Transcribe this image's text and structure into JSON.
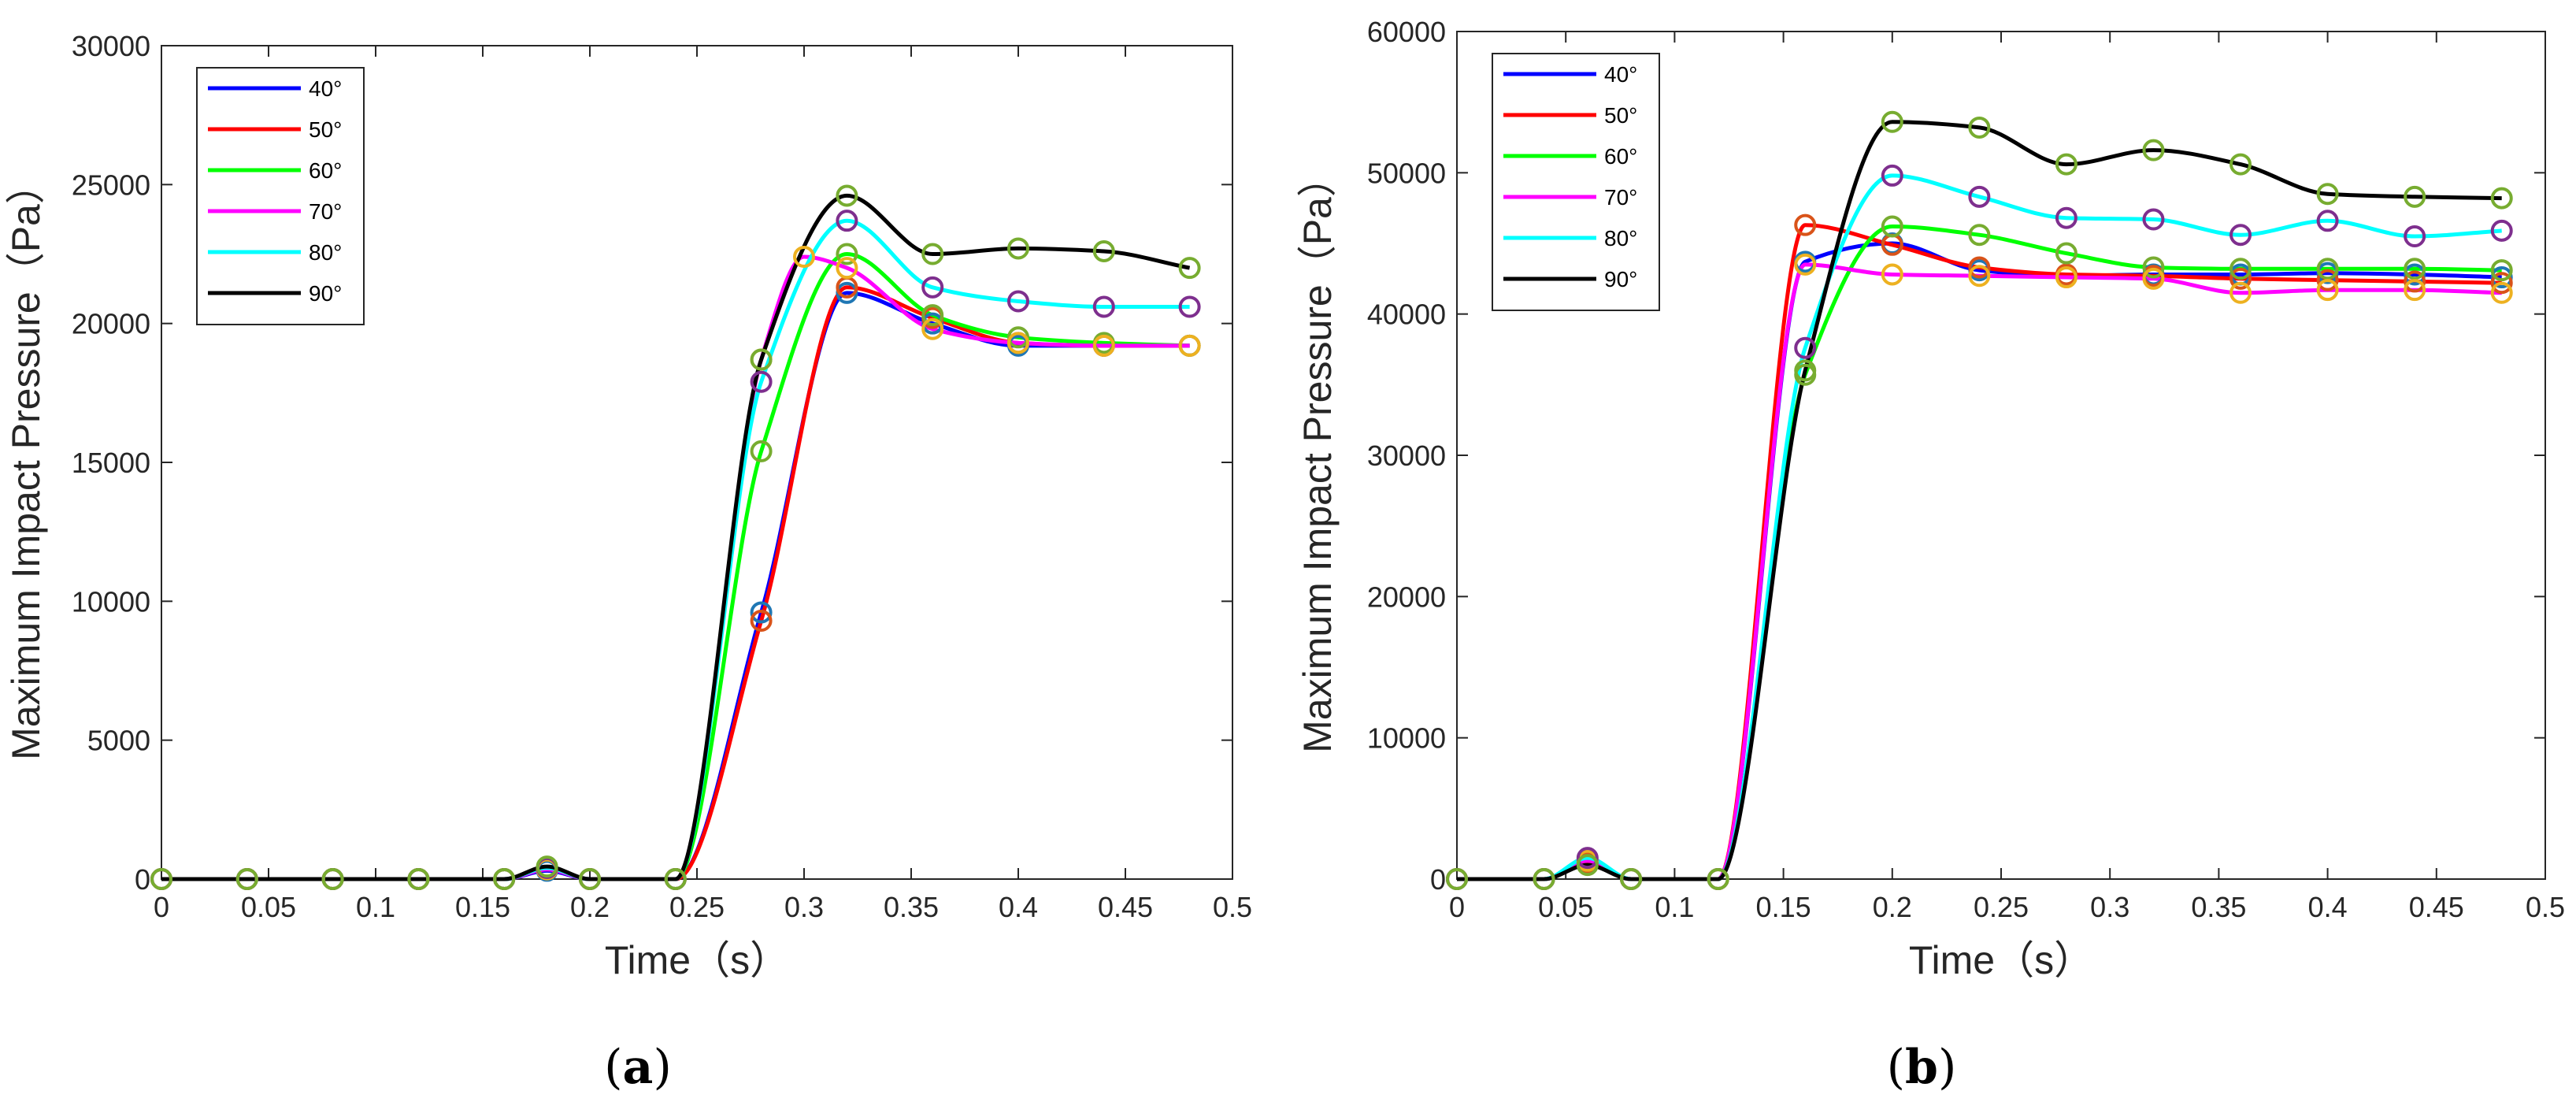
{
  "chart_data": [
    {
      "type": "line",
      "caption_open": "(",
      "caption_letter": "a",
      "caption_close": ")",
      "xlabel": "Time（s）",
      "ylabel": "Maximum Impact Pressure（Pa）",
      "xlim": [
        0,
        0.5
      ],
      "ylim": [
        0,
        30000
      ],
      "xticks": [
        0,
        0.05,
        0.1,
        0.15,
        0.2,
        0.25,
        0.3,
        0.35,
        0.4,
        0.45,
        0.5
      ],
      "xtick_labels": [
        "0",
        "0.05",
        "0.1",
        "0.15",
        "0.2",
        "0.25",
        "0.3",
        "0.35",
        "0.4",
        "0.45",
        "0.5"
      ],
      "yticks": [
        0,
        5000,
        10000,
        15000,
        20000,
        25000,
        30000
      ],
      "ytick_labels": [
        "0",
        "5000",
        "10000",
        "15000",
        "20000",
        "25000",
        "30000"
      ],
      "legend_location": "top-left",
      "series": [
        {
          "name": "40°",
          "color": "#0000ff",
          "marker_color": "#1f77b4",
          "x": [
            0,
            0.04,
            0.08,
            0.12,
            0.16,
            0.18,
            0.2,
            0.24,
            0.28,
            0.32,
            0.36,
            0.4,
            0.44,
            0.48
          ],
          "y": [
            0,
            0,
            0,
            0,
            0,
            300,
            0,
            0,
            9600,
            21100,
            20000,
            19200,
            19200,
            19200
          ]
        },
        {
          "name": "50°",
          "color": "#ff0000",
          "marker_color": "#d95319",
          "x": [
            0,
            0.04,
            0.08,
            0.12,
            0.16,
            0.18,
            0.2,
            0.24,
            0.28,
            0.32,
            0.36,
            0.4,
            0.44,
            0.48
          ],
          "y": [
            0,
            0,
            0,
            0,
            0,
            350,
            0,
            0,
            9300,
            21300,
            20200,
            19300,
            19200,
            19200
          ]
        },
        {
          "name": "60°",
          "color": "#00ff00",
          "marker_color": "#77ac30",
          "x": [
            0,
            0.04,
            0.08,
            0.12,
            0.16,
            0.18,
            0.2,
            0.24,
            0.28,
            0.32,
            0.36,
            0.4,
            0.44,
            0.48
          ],
          "y": [
            0,
            0,
            0,
            0,
            0,
            400,
            0,
            0,
            15400,
            22500,
            20300,
            19500,
            19300,
            19200
          ]
        },
        {
          "name": "70°",
          "color": "#ff00ff",
          "marker_color": "#edb120",
          "x": [
            0,
            0.04,
            0.08,
            0.12,
            0.16,
            0.18,
            0.2,
            0.24,
            0.28,
            0.3,
            0.32,
            0.36,
            0.4,
            0.44,
            0.48
          ],
          "y": [
            0,
            0,
            0,
            0,
            0,
            350,
            0,
            0,
            18700,
            22400,
            22000,
            19800,
            19300,
            19200,
            19200
          ]
        },
        {
          "name": "80°",
          "color": "#00ffff",
          "marker_color": "#7e2f8e",
          "x": [
            0,
            0.04,
            0.08,
            0.12,
            0.16,
            0.18,
            0.2,
            0.24,
            0.28,
            0.32,
            0.36,
            0.4,
            0.44,
            0.48
          ],
          "y": [
            0,
            0,
            0,
            0,
            0,
            400,
            0,
            0,
            17900,
            23700,
            21300,
            20800,
            20600,
            20600
          ]
        },
        {
          "name": "90°",
          "color": "#000000",
          "marker_color": "#77ac30",
          "x": [
            0,
            0.04,
            0.08,
            0.12,
            0.16,
            0.18,
            0.2,
            0.24,
            0.28,
            0.32,
            0.36,
            0.4,
            0.44,
            0.48
          ],
          "y": [
            0,
            0,
            0,
            0,
            0,
            450,
            0,
            0,
            18700,
            24600,
            22500,
            22700,
            22600,
            22000
          ]
        }
      ]
    },
    {
      "type": "line",
      "caption_open": "(",
      "caption_letter": "b",
      "caption_close": ")",
      "xlabel": "Time（s）",
      "ylabel": "Maximum Impact Pressure（Pa）",
      "xlim": [
        0,
        0.5
      ],
      "ylim": [
        0,
        60000
      ],
      "xticks": [
        0,
        0.05,
        0.1,
        0.15,
        0.2,
        0.25,
        0.3,
        0.35,
        0.4,
        0.45,
        0.5
      ],
      "xtick_labels": [
        "0",
        "0.05",
        "0.1",
        "0.15",
        "0.2",
        "0.25",
        "0.3",
        "0.35",
        "0.4",
        "0.45",
        "0.5"
      ],
      "yticks": [
        0,
        10000,
        20000,
        30000,
        40000,
        50000,
        60000
      ],
      "ytick_labels": [
        "0",
        "10000",
        "20000",
        "30000",
        "40000",
        "50000",
        "60000"
      ],
      "legend_location": "top-left",
      "series": [
        {
          "name": "40°",
          "color": "#0000ff",
          "marker_color": "#1f77b4",
          "x": [
            0,
            0.04,
            0.06,
            0.08,
            0.12,
            0.16,
            0.2,
            0.24,
            0.28,
            0.32,
            0.36,
            0.4,
            0.44,
            0.48
          ],
          "y": [
            0,
            0,
            1100,
            0,
            0,
            43700,
            45000,
            43100,
            42700,
            42800,
            42800,
            42900,
            42800,
            42600
          ]
        },
        {
          "name": "50°",
          "color": "#ff0000",
          "marker_color": "#d95319",
          "x": [
            0,
            0.04,
            0.06,
            0.08,
            0.12,
            0.16,
            0.2,
            0.24,
            0.28,
            0.32,
            0.36,
            0.4,
            0.44,
            0.48
          ],
          "y": [
            0,
            0,
            1200,
            0,
            0,
            46300,
            44900,
            43300,
            42800,
            42700,
            42500,
            42400,
            42300,
            42200
          ]
        },
        {
          "name": "60°",
          "color": "#00ff00",
          "marker_color": "#77ac30",
          "x": [
            0,
            0.04,
            0.06,
            0.08,
            0.12,
            0.16,
            0.2,
            0.24,
            0.28,
            0.32,
            0.36,
            0.4,
            0.44,
            0.48
          ],
          "y": [
            0,
            0,
            1400,
            0,
            0,
            35700,
            46200,
            45600,
            44300,
            43300,
            43200,
            43200,
            43200,
            43100
          ]
        },
        {
          "name": "70°",
          "color": "#ff00ff",
          "marker_color": "#edb120",
          "x": [
            0,
            0.04,
            0.06,
            0.08,
            0.12,
            0.16,
            0.2,
            0.24,
            0.28,
            0.32,
            0.36,
            0.4,
            0.44,
            0.48
          ],
          "y": [
            0,
            0,
            1300,
            0,
            0,
            43500,
            42800,
            42700,
            42600,
            42500,
            41500,
            41700,
            41700,
            41500
          ]
        },
        {
          "name": "80°",
          "color": "#00ffff",
          "marker_color": "#7e2f8e",
          "x": [
            0,
            0.04,
            0.06,
            0.08,
            0.12,
            0.16,
            0.2,
            0.24,
            0.28,
            0.32,
            0.36,
            0.4,
            0.44,
            0.48
          ],
          "y": [
            0,
            0,
            1500,
            0,
            0,
            37600,
            49800,
            48300,
            46800,
            46700,
            45600,
            46600,
            45500,
            45900
          ]
        },
        {
          "name": "90°",
          "color": "#000000",
          "marker_color": "#77ac30",
          "x": [
            0,
            0.04,
            0.06,
            0.08,
            0.12,
            0.16,
            0.2,
            0.24,
            0.28,
            0.32,
            0.36,
            0.4,
            0.44,
            0.48
          ],
          "y": [
            0,
            0,
            1000,
            0,
            0,
            36000,
            53600,
            53200,
            50600,
            51600,
            50600,
            48500,
            48300,
            48200
          ]
        }
      ]
    }
  ]
}
